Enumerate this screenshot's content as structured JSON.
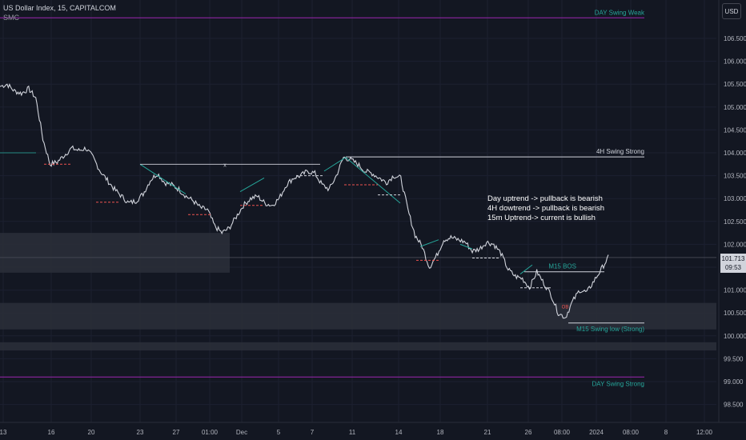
{
  "header": {
    "symbol_line": "US Dollar Index, 15, CAPITALCOM",
    "indicator": "SMC"
  },
  "currency": "USD",
  "last_price": {
    "value": "101.713",
    "countdown": "09:53"
  },
  "colors": {
    "background": "#131722",
    "candle": "#d1d4dc",
    "structure_line": "#26a69a",
    "day_level": "#9c27b0",
    "zone": "#2a2e39",
    "bearish_equal": "#ef5350"
  },
  "chart_data": {
    "type": "line",
    "title": "",
    "xlabel": "",
    "ylabel": "",
    "ylim": [
      98.3,
      107.1
    ],
    "y_ticks": [
      "106.500",
      "106.000",
      "105.500",
      "105.000",
      "104.500",
      "104.000",
      "103.500",
      "103.000",
      "102.500",
      "102.000",
      "101.500",
      "101.000",
      "100.500",
      "100.000",
      "99.500",
      "99.000",
      "98.500"
    ],
    "y_tick_values": [
      106.5,
      106.0,
      105.5,
      105.0,
      104.5,
      104.0,
      103.5,
      103.0,
      102.5,
      102.0,
      101.5,
      101.0,
      100.5,
      100.0,
      99.5,
      99.0,
      98.5
    ],
    "x_ticks": [
      "13",
      "16",
      "20",
      "23",
      "27",
      "01:00",
      "Dec",
      "5",
      "7",
      "11",
      "14",
      "18",
      "21",
      "26",
      "08:00",
      "2024",
      "08:00",
      "8",
      "12:00"
    ],
    "series": [
      {
        "values": [
          105.45,
          105.5,
          105.35,
          105.3,
          105.4,
          105.2,
          104.3,
          103.75,
          103.8,
          103.95,
          104.1,
          104.05,
          104.1,
          103.9,
          103.6,
          103.4,
          103.2,
          103.05,
          102.9,
          102.95,
          103.1,
          103.4,
          103.55,
          103.35,
          103.3,
          103.2,
          103.05,
          102.95,
          102.8,
          102.75,
          102.4,
          102.25,
          102.35,
          102.6,
          102.85,
          103.0,
          103.05,
          102.9,
          102.85,
          103.0,
          103.3,
          103.45,
          103.5,
          103.6,
          103.55,
          103.3,
          103.2,
          103.5,
          103.9,
          103.85,
          103.75,
          103.6,
          103.55,
          103.45,
          103.35,
          103.5,
          103.45,
          102.75,
          102.2,
          101.95,
          101.5,
          101.75,
          102.1,
          102.15,
          102.1,
          102.05,
          101.85,
          101.9,
          102.05,
          102.0,
          101.8,
          101.45,
          101.3,
          101.25,
          101.05,
          101.4,
          101.15,
          100.9,
          100.5,
          100.4,
          100.75,
          101.0,
          100.95,
          101.2,
          101.45,
          101.713
        ]
      }
    ],
    "levels": [
      {
        "label": "DAY Swing Weak",
        "value": 106.95
      },
      {
        "label": "4H Swing Strong",
        "value": 103.91
      },
      {
        "label": "M15 BOS",
        "value": 101.4
      },
      {
        "label": "M15 Swing low (Strong)",
        "value": 100.28
      },
      {
        "label": "DAY Swing Strong",
        "value": 99.1
      }
    ],
    "zones": [
      {
        "from": 101.38,
        "to": 102.25
      },
      {
        "from": 100.14,
        "to": 100.72
      },
      {
        "from": 99.68,
        "to": 99.86
      }
    ],
    "annotations": [
      "Day uptrend     -> pullback is bearish",
      "4H dowtrend     -> pullback  is bearish",
      "15m Uptrend-> current is bullish"
    ],
    "small_marks": [
      "x",
      "OB"
    ],
    "grid": true,
    "legend": "none"
  }
}
